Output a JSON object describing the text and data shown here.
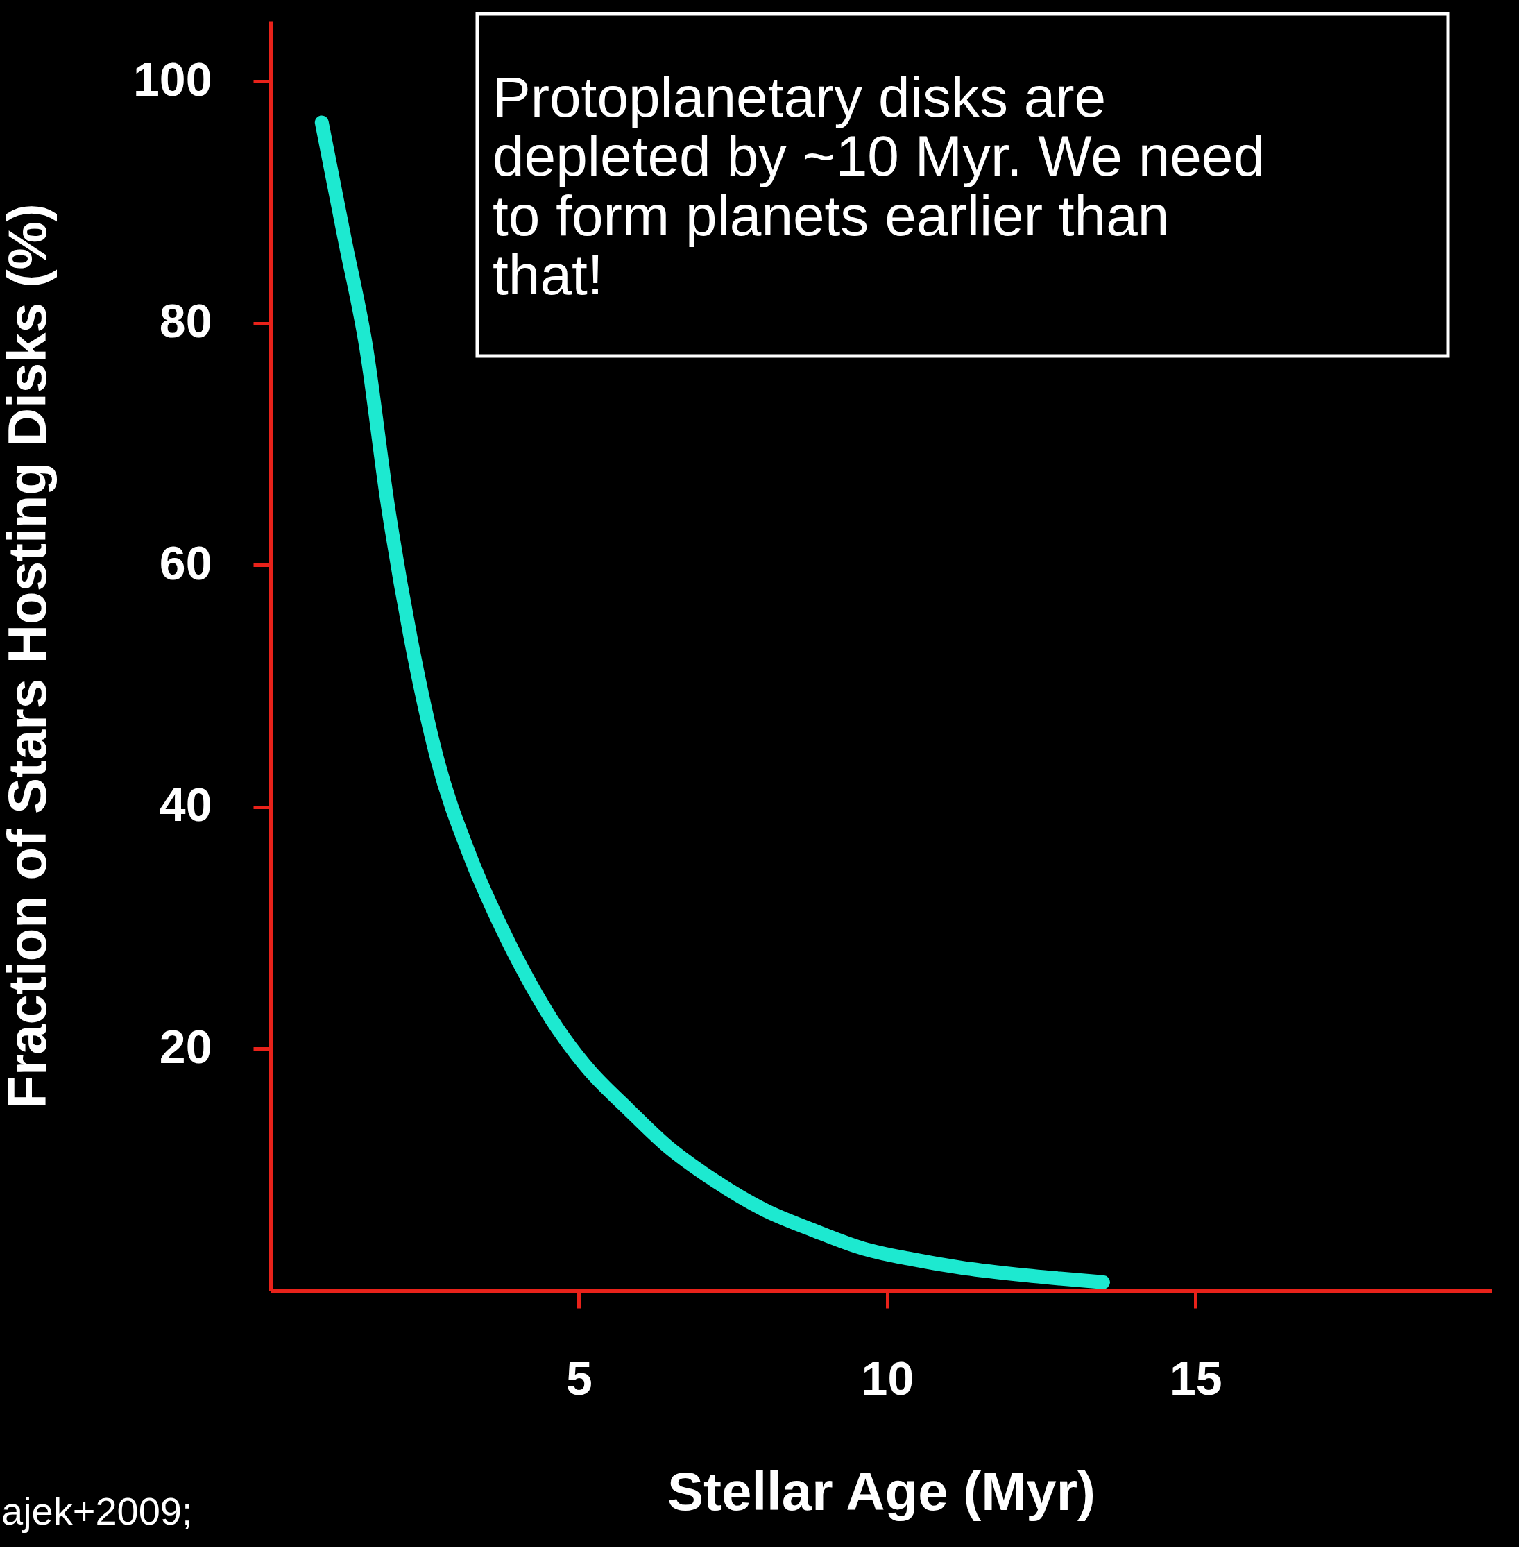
{
  "chart_data": {
    "type": "line",
    "xlabel": "Stellar Age (Myr)",
    "ylabel": "Fraction of Stars Hosting Disks (%)",
    "x": [
      0.83,
      1.2,
      1.55,
      1.9,
      2.27,
      2.7,
      3.23,
      3.7,
      4.19,
      4.65,
      5.14,
      5.8,
      6.42,
      7.2,
      8.0,
      8.8,
      9.6,
      10.4,
      11.2,
      12.0,
      12.8,
      13.5
    ],
    "series": [
      {
        "color": "#1de9d0",
        "values": [
          96.6,
          87,
          78,
          65,
          54,
          44,
          36,
          30.5,
          25.6,
          21.7,
          18.4,
          15,
          12,
          9.1,
          6.7,
          5,
          3.5,
          2.6,
          1.9,
          1.4,
          1.0,
          0.7
        ]
      }
    ],
    "xlim": [
      0,
      19.8
    ],
    "ylim": [
      0,
      105
    ],
    "xticks": [
      5,
      10,
      15
    ],
    "yticks": [
      20,
      40,
      60,
      80,
      100
    ],
    "grid": false,
    "legend": false,
    "line_style": "solid",
    "annotations": [
      "Protoplanetary disks are depleted by ~10 Myr. We need to form planets earlier than that!",
      "ajek+2009;"
    ]
  }
}
